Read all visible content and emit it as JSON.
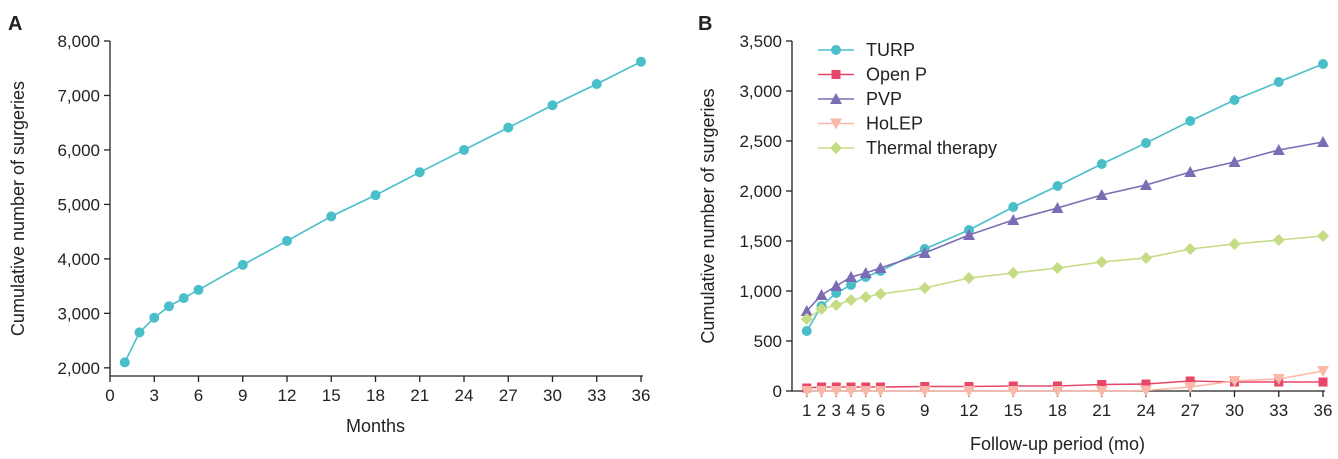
{
  "panel_a_label": "A",
  "panel_b_label": "B",
  "chart_data": [
    {
      "type": "line",
      "panel": "A",
      "xlabel": "Months",
      "ylabel": "Cumulative number of surgeries",
      "x_ticks": [
        0,
        3,
        6,
        9,
        12,
        15,
        18,
        21,
        24,
        27,
        30,
        33,
        36
      ],
      "y_ticks": [
        2000,
        3000,
        4000,
        5000,
        6000,
        7000,
        8000
      ],
      "y_tick_labels": [
        "2,000",
        "3,000",
        "4,000",
        "5,000",
        "6,000",
        "7,000",
        "8,000"
      ],
      "xlim": [
        0,
        36
      ],
      "ylim": [
        1850,
        8000
      ],
      "series": [
        {
          "color": "#4bbfc9",
          "marker": "circle",
          "x": [
            1,
            2,
            3,
            4,
            5,
            6,
            9,
            12,
            15,
            18,
            21,
            24,
            27,
            30,
            33,
            36
          ],
          "y": [
            2100,
            2650,
            2920,
            3130,
            3280,
            3430,
            3890,
            4330,
            4780,
            5170,
            5590,
            6000,
            6410,
            6820,
            7210,
            7620
          ]
        }
      ]
    },
    {
      "type": "line",
      "panel": "B",
      "xlabel": "Follow-up period (mo)",
      "ylabel": "Cumulative number of surgeries",
      "x_ticks": [
        1,
        2,
        3,
        4,
        5,
        6,
        9,
        12,
        15,
        18,
        21,
        24,
        27,
        30,
        33,
        36
      ],
      "y_ticks": [
        0,
        500,
        1000,
        1500,
        2000,
        2500,
        3000,
        3500
      ],
      "y_tick_labels": [
        "0",
        "500",
        "1,000",
        "1,500",
        "2,000",
        "2,500",
        "3,000",
        "3,500"
      ],
      "xlim": [
        0,
        36
      ],
      "ylim": [
        0,
        3500
      ],
      "legend": "top-left",
      "series": [
        {
          "name": "TURP",
          "color": "#4bbfc9",
          "marker": "circle",
          "x": [
            1,
            2,
            3,
            4,
            5,
            6,
            9,
            12,
            15,
            18,
            21,
            24,
            27,
            30,
            33,
            36
          ],
          "y": [
            600,
            850,
            980,
            1060,
            1140,
            1200,
            1420,
            1610,
            1840,
            2050,
            2270,
            2480,
            2700,
            2910,
            3090,
            3270
          ]
        },
        {
          "name": "Open P",
          "color": "#e8476a",
          "marker": "square",
          "x": [
            1,
            2,
            3,
            4,
            5,
            6,
            9,
            12,
            15,
            18,
            21,
            24,
            27,
            30,
            33,
            36
          ],
          "y": [
            30,
            40,
            40,
            40,
            40,
            40,
            45,
            45,
            50,
            50,
            65,
            70,
            100,
            90,
            90,
            90
          ]
        },
        {
          "name": "PVP",
          "color": "#7b6cb4",
          "marker": "triangle-up",
          "x": [
            1,
            2,
            3,
            4,
            5,
            6,
            9,
            12,
            15,
            18,
            21,
            24,
            27,
            30,
            33,
            36
          ],
          "y": [
            800,
            960,
            1050,
            1140,
            1180,
            1230,
            1380,
            1560,
            1710,
            1830,
            1960,
            2060,
            2190,
            2290,
            2410,
            2490
          ]
        },
        {
          "name": "HoLEP",
          "color": "#f9b8a8",
          "marker": "triangle-down",
          "x": [
            1,
            2,
            3,
            4,
            5,
            6,
            9,
            12,
            15,
            18,
            21,
            24,
            27,
            30,
            33,
            36
          ],
          "y": [
            0,
            0,
            0,
            0,
            0,
            0,
            0,
            0,
            0,
            0,
            0,
            5,
            40,
            100,
            120,
            200
          ]
        },
        {
          "name": "Thermal therapy",
          "color": "#c6dc84",
          "marker": "diamond",
          "x": [
            1,
            2,
            3,
            4,
            5,
            6,
            9,
            12,
            15,
            18,
            21,
            24,
            27,
            30,
            33,
            36
          ],
          "y": [
            720,
            820,
            860,
            910,
            940,
            970,
            1030,
            1130,
            1180,
            1230,
            1290,
            1330,
            1420,
            1470,
            1510,
            1550
          ]
        }
      ]
    }
  ]
}
